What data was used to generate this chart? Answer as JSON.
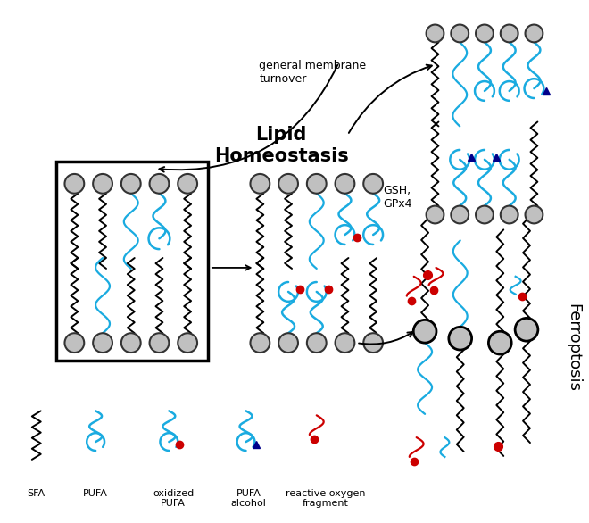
{
  "bg_color": "#ffffff",
  "black": "#000000",
  "cyan": "#1aabe0",
  "red": "#cc0000",
  "blue_dark": "#00008b",
  "gray_circle": "#c0c0c0",
  "gray_circle_edge": "#333333",
  "lipid_h_text": "Lipid\nHomeostasis",
  "general_membrane_text": "general membrane\nturnover",
  "gsh_text": "GSH,\nGPx4",
  "ferroptosis_text": "Ferroptosis"
}
